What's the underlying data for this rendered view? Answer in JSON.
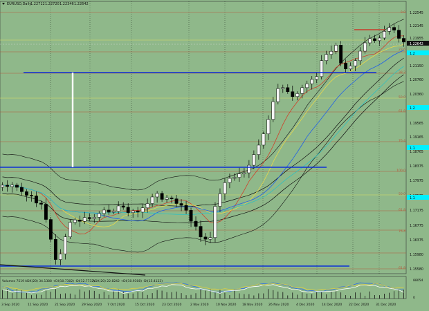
{
  "header": {
    "symbol": "EURUSD,Daily",
    "ohlc": [
      "1.22712",
      "1.22720",
      "1.22346",
      "1.22642"
    ]
  },
  "price_scale": {
    "ticks": [
      "1.22545",
      "1.22145",
      "1.21955",
      "1.21555",
      "1.21150",
      "1.20760",
      "1.20360",
      "1.19960",
      "1.19565",
      "1.19165",
      "1.18765",
      "1.18375",
      "1.17975",
      "1.17575",
      "1.17175",
      "1.16775",
      "1.16375",
      "1.15980",
      "1.15580"
    ],
    "current_price": "1.22642",
    "markers": [
      "1.2",
      "1.2",
      "1.1",
      "1.1"
    ]
  },
  "fib_labels": [
    "0.0",
    "23.6",
    "38.2",
    "50.0",
    "61.8",
    "76.4",
    "100.0",
    "50.0",
    "61.8",
    "76.4",
    "61.8"
  ],
  "indicator": {
    "label": "Volumes 7519",
    "admi_label": "ADX(20) 34.1388 +DI(10.7302) -DI(12.7732)",
    "adx_label": "ADX(20) 22.8242 +DI(10.9308) -DI(15.4123)",
    "scale": [
      "88054",
      "0"
    ]
  },
  "time_axis": [
    "3 Sep 2020",
    "11 Sep 2020",
    "21 Sep 2020",
    "29 Sep 2020",
    "7 Oct 2020",
    "15 Oct 2020",
    "23 Oct 2020",
    "2 Nov 2020",
    "10 Nov 2020",
    "18 Nov 2020",
    "26 Nov 2020",
    "4 Dec 2020",
    "14 Dec 2020",
    "22 Dec 2020",
    "31 Dec 2020"
  ],
  "colors": {
    "background": "#8fb88a",
    "bull": "#f5f5f5",
    "bear": "#000000",
    "support": "#0b2fd6",
    "fib": "#b5573a",
    "yellow": "#e0e060",
    "cyan": "#00f0ff"
  }
}
